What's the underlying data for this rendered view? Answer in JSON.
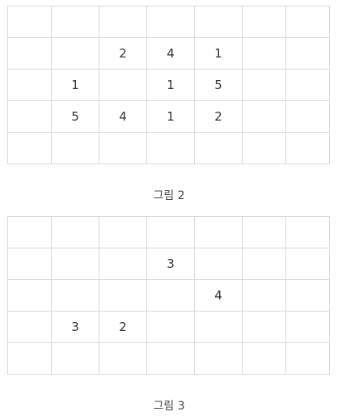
{
  "figures": [
    {
      "caption": "그림 2",
      "rows": [
        [
          "",
          "",
          "",
          "",
          "",
          "",
          ""
        ],
        [
          "",
          "",
          "2",
          "4",
          "1",
          "",
          ""
        ],
        [
          "",
          "1",
          "",
          "1",
          "5",
          "",
          ""
        ],
        [
          "",
          "5",
          "4",
          "1",
          "2",
          "",
          ""
        ],
        [
          "",
          "",
          "",
          "",
          "",
          "",
          ""
        ]
      ]
    },
    {
      "caption": "그림 3",
      "rows": [
        [
          "",
          "",
          "",
          "",
          "",
          "",
          ""
        ],
        [
          "",
          "",
          "",
          "3",
          "",
          "",
          ""
        ],
        [
          "",
          "",
          "",
          "",
          "4",
          "",
          ""
        ],
        [
          "",
          "3",
          "2",
          "",
          "",
          "",
          ""
        ],
        [
          "",
          "",
          "",
          "",
          "",
          "",
          ""
        ]
      ]
    }
  ]
}
